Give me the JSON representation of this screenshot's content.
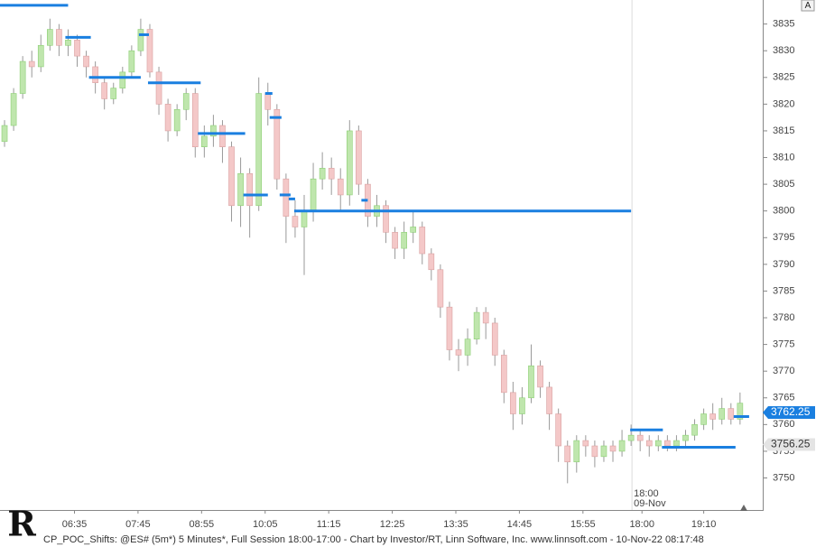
{
  "chart_data": {
    "type": "candlestick",
    "ylim": [
      3744,
      3839.5
    ],
    "yticks": [
      3750,
      3755,
      3760,
      3765,
      3770,
      3775,
      3780,
      3785,
      3790,
      3795,
      3800,
      3805,
      3810,
      3815,
      3820,
      3825,
      3830,
      3835
    ],
    "xlim": [
      -0.5,
      83.5
    ],
    "xticks": [
      {
        "value": 7.7,
        "label": "06:35"
      },
      {
        "value": 14.7,
        "label": "07:45"
      },
      {
        "value": 21.7,
        "label": "08:55"
      },
      {
        "value": 28.7,
        "label": "10:05"
      },
      {
        "value": 35.7,
        "label": "11:15"
      },
      {
        "value": 42.7,
        "label": "12:25"
      },
      {
        "value": 49.7,
        "label": "13:35"
      },
      {
        "value": 56.7,
        "label": "14:45"
      },
      {
        "value": 63.7,
        "label": "15:55"
      },
      {
        "value": 70.2,
        "label": "18:00"
      },
      {
        "value": 77.0,
        "label": "19:10"
      }
    ],
    "session_break": {
      "at": 69.1,
      "time": "18:00",
      "date": "09-Nov"
    },
    "up_color": "#bfe6ad",
    "down_color": "#f4c8c8",
    "poc_color": "#1a7fe0",
    "candles": [
      [
        3813,
        3817,
        3812,
        3816
      ],
      [
        3816,
        3823,
        3815,
        3822
      ],
      [
        3822,
        3829,
        3821,
        3828
      ],
      [
        3828,
        3830,
        3825,
        3827
      ],
      [
        3827,
        3833,
        3826,
        3831
      ],
      [
        3831,
        3836,
        3830,
        3834
      ],
      [
        3834,
        3835,
        3829,
        3831
      ],
      [
        3831,
        3834,
        3829,
        3832
      ],
      [
        3832,
        3833,
        3827,
        3829
      ],
      [
        3829,
        3830,
        3825,
        3827
      ],
      [
        3827,
        3828,
        3822,
        3824
      ],
      [
        3824,
        3825,
        3819,
        3821
      ],
      [
        3821,
        3824,
        3820,
        3823
      ],
      [
        3823,
        3827,
        3822,
        3826
      ],
      [
        3826,
        3831,
        3825,
        3830
      ],
      [
        3830,
        3836,
        3829,
        3834
      ],
      [
        3834,
        3835,
        3825,
        3826
      ],
      [
        3826,
        3827,
        3818,
        3820
      ],
      [
        3820,
        3821,
        3813,
        3815
      ],
      [
        3815,
        3820,
        3814,
        3819
      ],
      [
        3819,
        3823,
        3817,
        3822
      ],
      [
        3822,
        3823,
        3810,
        3812
      ],
      [
        3812,
        3816,
        3810,
        3814
      ],
      [
        3814,
        3818,
        3812,
        3816
      ],
      [
        3816,
        3817,
        3809,
        3812
      ],
      [
        3812,
        3813,
        3798,
        3801
      ],
      [
        3801,
        3810,
        3797,
        3807
      ],
      [
        3807,
        3808,
        3795,
        3801
      ],
      [
        3801,
        3825,
        3800,
        3822
      ],
      [
        3822,
        3824,
        3816,
        3819
      ],
      [
        3819,
        3820,
        3804,
        3806
      ],
      [
        3806,
        3807,
        3794,
        3799
      ],
      [
        3799,
        3802,
        3795,
        3797
      ],
      [
        3797,
        3803,
        3788,
        3800
      ],
      [
        3800,
        3809,
        3798,
        3806
      ],
      [
        3806,
        3811,
        3804,
        3808
      ],
      [
        3808,
        3810,
        3803,
        3806
      ],
      [
        3806,
        3808,
        3800,
        3803
      ],
      [
        3803,
        3817,
        3801,
        3815
      ],
      [
        3815,
        3816,
        3803,
        3805
      ],
      [
        3805,
        3806,
        3797,
        3799
      ],
      [
        3799,
        3803,
        3797,
        3801
      ],
      [
        3801,
        3802,
        3794,
        3796
      ],
      [
        3796,
        3797,
        3791,
        3793
      ],
      [
        3793,
        3798,
        3791,
        3796
      ],
      [
        3796,
        3800,
        3794,
        3797
      ],
      [
        3797,
        3798,
        3790,
        3792
      ],
      [
        3792,
        3793,
        3787,
        3789
      ],
      [
        3789,
        3790,
        3780,
        3782
      ],
      [
        3782,
        3783,
        3772,
        3774
      ],
      [
        3774,
        3776,
        3770,
        3773
      ],
      [
        3773,
        3778,
        3771,
        3776
      ],
      [
        3776,
        3782,
        3775,
        3781
      ],
      [
        3781,
        3782,
        3776,
        3779
      ],
      [
        3779,
        3780,
        3771,
        3773
      ],
      [
        3773,
        3774,
        3764,
        3766
      ],
      [
        3766,
        3768,
        3759,
        3762
      ],
      [
        3762,
        3767,
        3760,
        3765
      ],
      [
        3765,
        3775,
        3764,
        3771
      ],
      [
        3771,
        3772,
        3765,
        3767
      ],
      [
        3767,
        3768,
        3759,
        3762
      ],
      [
        3762,
        3763,
        3753,
        3756
      ],
      [
        3756,
        3757,
        3749,
        3753
      ],
      [
        3753,
        3758,
        3751,
        3757
      ],
      [
        3757,
        3758,
        3754,
        3756
      ],
      [
        3756,
        3757,
        3752,
        3754
      ],
      [
        3754,
        3757,
        3753,
        3756
      ],
      [
        3756,
        3757,
        3753,
        3755
      ],
      [
        3755,
        3759,
        3754,
        3757
      ],
      [
        3757,
        3760,
        3756,
        3758
      ],
      [
        3758,
        3759,
        3755,
        3757
      ],
      [
        3757,
        3758,
        3754,
        3756
      ],
      [
        3756,
        3758,
        3755,
        3757
      ],
      [
        3757,
        3758,
        3755,
        3756
      ],
      [
        3756,
        3758,
        3755,
        3757
      ],
      [
        3757,
        3759,
        3756,
        3758
      ],
      [
        3758,
        3761,
        3757,
        3760
      ],
      [
        3760,
        3763,
        3759,
        3762
      ],
      [
        3762,
        3764,
        3759,
        3761
      ],
      [
        3761,
        3765,
        3760,
        3763
      ],
      [
        3763,
        3764,
        3760,
        3761
      ],
      [
        3761,
        3766,
        3760,
        3764
      ]
    ],
    "poc": [
      {
        "price": 3838.5,
        "from": -0.5,
        "to": 7
      },
      {
        "price": 3832.5,
        "from": 6.7,
        "to": 9.5
      },
      {
        "price": 3825,
        "from": 9.3,
        "to": 15
      },
      {
        "price": 3833,
        "from": 14.8,
        "to": 15.9
      },
      {
        "price": 3824,
        "from": 15.8,
        "to": 21.6
      },
      {
        "price": 3814.5,
        "from": 21.3,
        "to": 26.5
      },
      {
        "price": 3803,
        "from": 26.3,
        "to": 29
      },
      {
        "price": 3822,
        "from": 28.7,
        "to": 29.5
      },
      {
        "price": 3817.5,
        "from": 29.2,
        "to": 30.5
      },
      {
        "price": 3803,
        "from": 30.3,
        "to": 31.5
      },
      {
        "price": 3802.25,
        "from": 31.3,
        "to": 32
      },
      {
        "price": 3800,
        "from": 31.9,
        "to": 69
      },
      {
        "price": 3802,
        "from": 39.3,
        "to": 40
      },
      {
        "price": 3759,
        "from": 68.9,
        "to": 72.5
      },
      {
        "price": 3755.75,
        "from": 72.4,
        "to": 80.5
      },
      {
        "price": 3761.5,
        "from": 80.3,
        "to": 82
      }
    ],
    "last_price": 3762.25,
    "marker_price": 3756.25,
    "button": "A",
    "logo": "R",
    "footer": "CP_POC_Shifts: @ES# (5m*) 5 Minutes*, Full Session 18:00-17:00 - Chart by Investor/RT, Linn Software, Inc. www.linnsoft.com - 10-Nov-22 08:17:48"
  }
}
